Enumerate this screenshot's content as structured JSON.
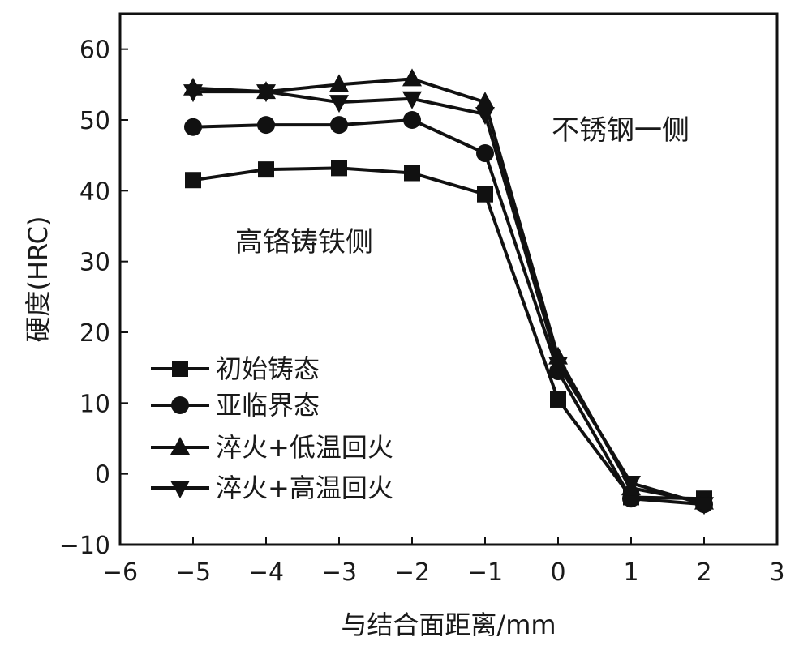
{
  "chart_data": {
    "type": "line",
    "xlabel": "与结合面距离/mm",
    "ylabel": "硬度(HRC)",
    "xlim": [
      -6,
      3
    ],
    "ylim": [
      -10,
      65
    ],
    "xticks": [
      -6,
      -5,
      -4,
      -3,
      -2,
      -1,
      0,
      1,
      2,
      3
    ],
    "yticks": [
      -10,
      0,
      10,
      20,
      30,
      40,
      50,
      60
    ],
    "xtick_labels": [
      "−6",
      "−5",
      "−4",
      "−3",
      "−2",
      "−1",
      "0",
      "1",
      "2",
      "3"
    ],
    "ytick_labels": [
      "−10",
      "0",
      "10",
      "20",
      "30",
      "40",
      "50",
      "60"
    ],
    "x": [
      -5,
      -4,
      -3,
      -2,
      -1,
      0,
      1,
      2
    ],
    "series": [
      {
        "name": "初始铸态",
        "marker": "square",
        "values": [
          41.5,
          43,
          43.2,
          42.5,
          39.5,
          10.5,
          -3.3,
          -3.5
        ]
      },
      {
        "name": "亚临界态",
        "marker": "circle",
        "values": [
          49,
          49.3,
          49.3,
          50,
          45.3,
          14.5,
          -3.5,
          -4.3
        ]
      },
      {
        "name": "淬火+低温回火",
        "marker": "triangle-up",
        "values": [
          54.5,
          54,
          55,
          55.8,
          52.5,
          16.5,
          -2,
          -4
        ]
      },
      {
        "name": "淬火+高温回火",
        "marker": "triangle-down",
        "values": [
          54,
          54,
          52.5,
          53,
          50.8,
          15.5,
          -1.3,
          -4.3
        ]
      }
    ],
    "annotations": [
      {
        "text": "不锈钢一侧",
        "x": 0.8,
        "y": 49
      },
      {
        "text": "高铬铸铁侧",
        "x": -4,
        "y": 33
      }
    ],
    "legend": "bottom-left",
    "grid": false,
    "line_color": "#111111"
  }
}
